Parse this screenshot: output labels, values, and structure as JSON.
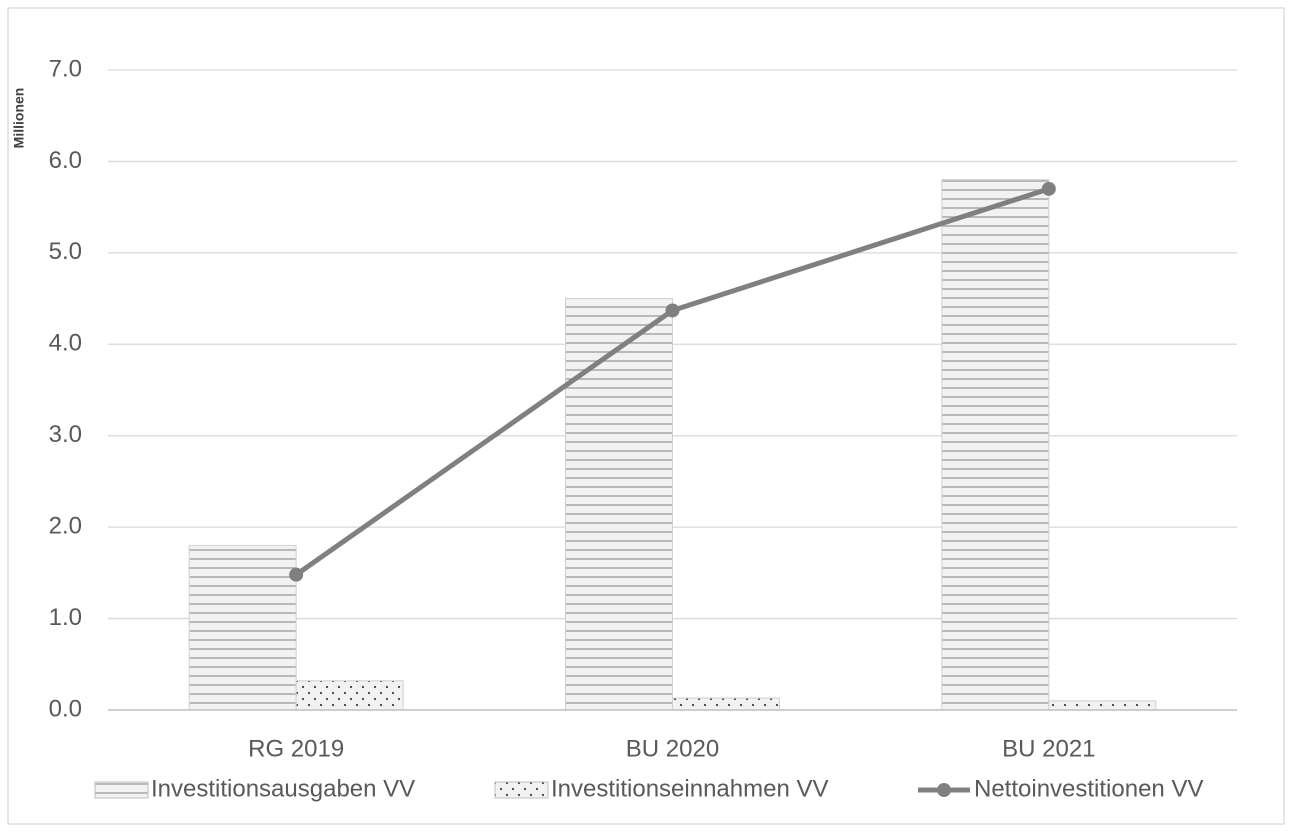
{
  "chart_data": {
    "type": "bar",
    "y_label": "Millionen",
    "categories": [
      "RG 2019",
      "BU 2020",
      "BU 2021"
    ],
    "series": [
      {
        "name": "Investitionsausgaben VV",
        "type": "bar",
        "color": "#a6a6a6",
        "values": [
          1.8,
          4.5,
          5.8
        ]
      },
      {
        "name": "Investitionseinnahmen VV",
        "type": "bar",
        "color": "#7f7f7f",
        "values": [
          0.32,
          0.13,
          0.1
        ]
      },
      {
        "name": "Nettoinvestitionen VV",
        "type": "line",
        "color": "#808080",
        "values": [
          1.48,
          4.37,
          5.7
        ]
      }
    ],
    "ylim": [
      0,
      7
    ],
    "yticks": [
      {
        "value": 0,
        "label": "0.0"
      },
      {
        "value": 1,
        "label": "1.0"
      },
      {
        "value": 2,
        "label": "2.0"
      },
      {
        "value": 3,
        "label": "3.0"
      },
      {
        "value": 4,
        "label": "4.0"
      },
      {
        "value": 5,
        "label": "5.0"
      },
      {
        "value": 6,
        "label": "6.0"
      },
      {
        "value": 7,
        "label": "7.0"
      }
    ],
    "grid": true,
    "legend": "bottom"
  }
}
